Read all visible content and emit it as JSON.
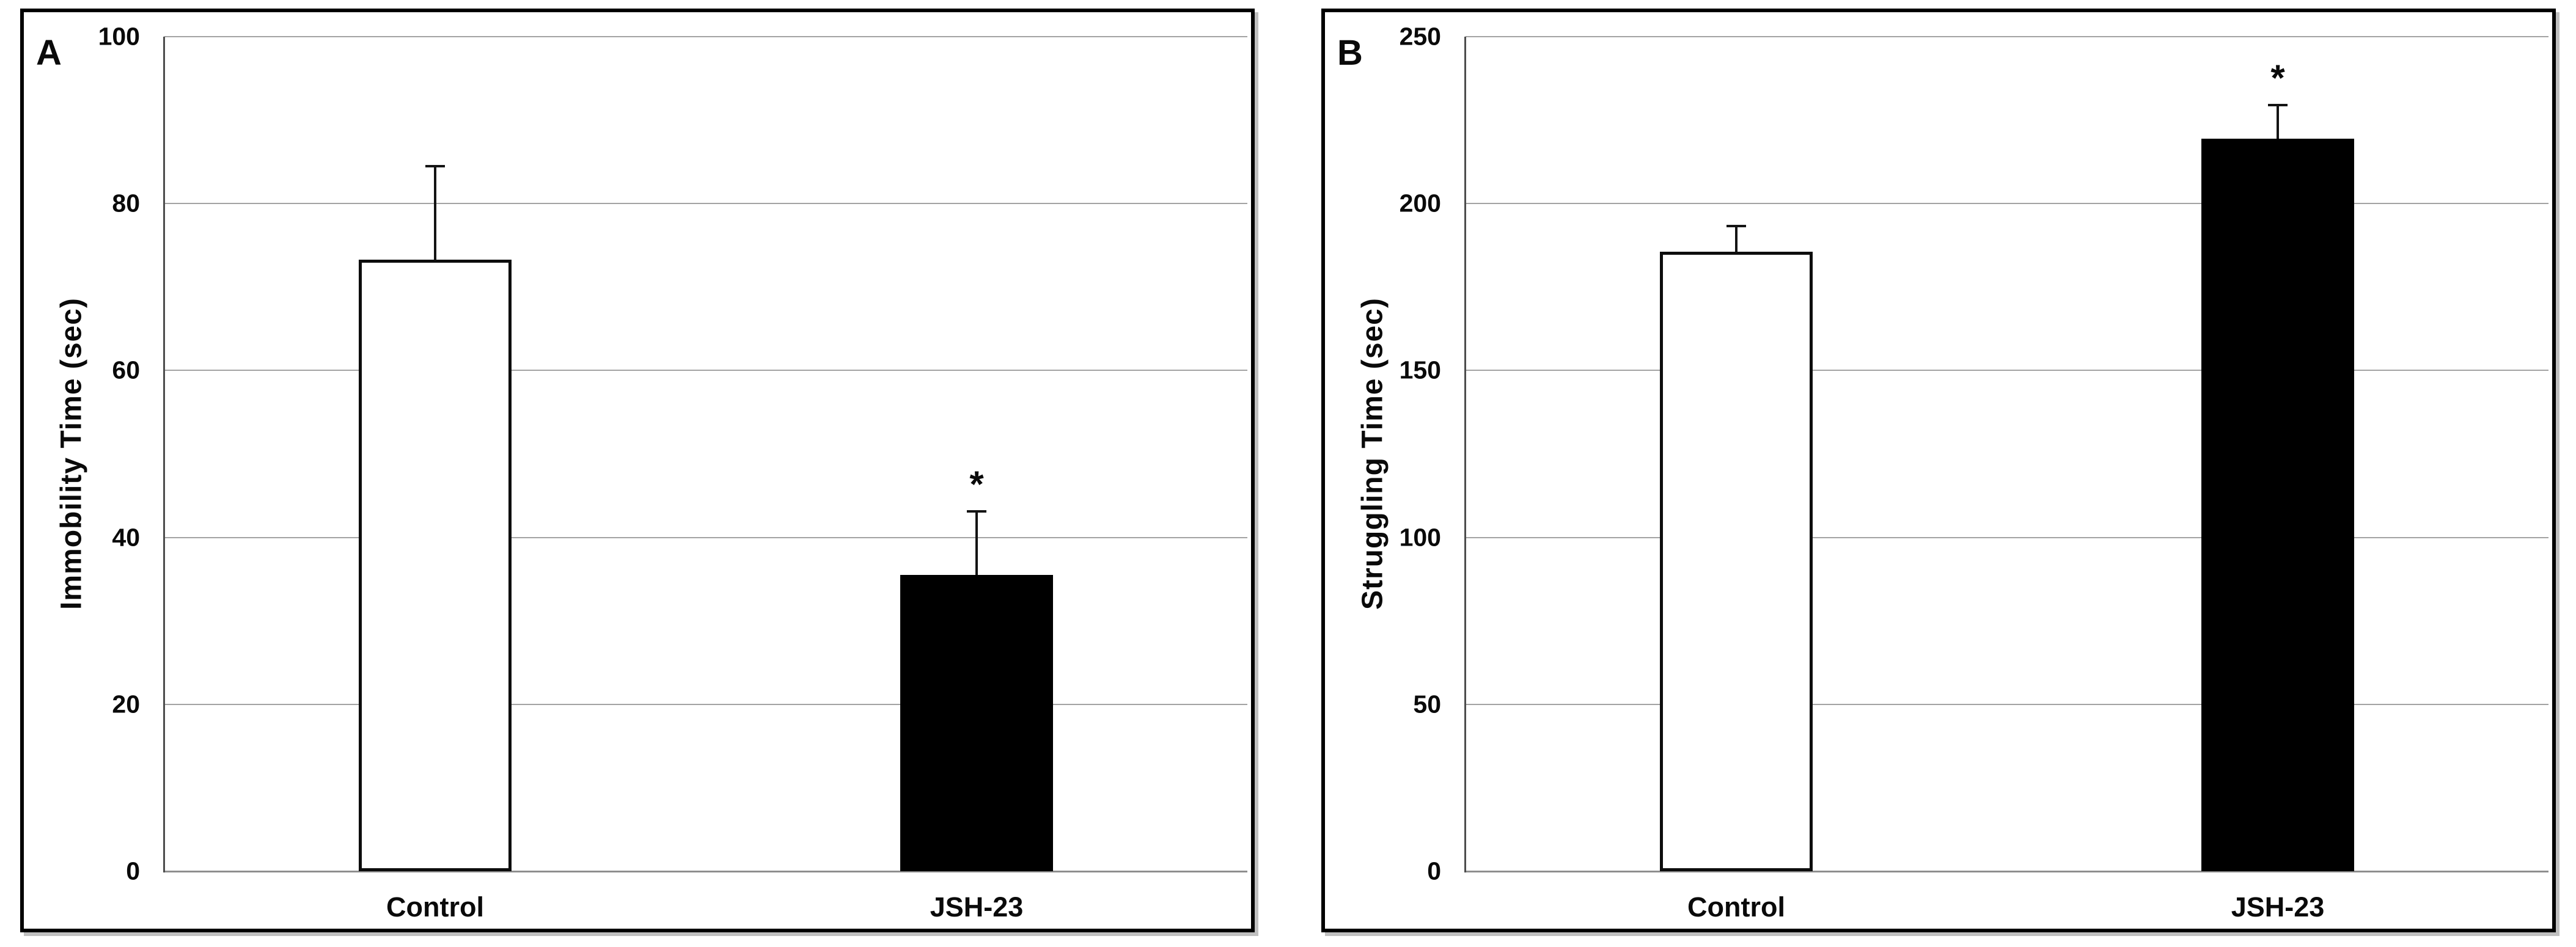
{
  "chart_data": [
    {
      "type": "bar",
      "panel_label": "A",
      "title": "",
      "xlabel": "",
      "ylabel": "Immobility Time (sec)",
      "categories": [
        "Control",
        "JSH-23"
      ],
      "values": [
        73.3,
        35.5
      ],
      "errors_plus": [
        11.2,
        7.6
      ],
      "significance": [
        "",
        "*"
      ],
      "bar_fills": [
        "#ffffff",
        "#000000"
      ],
      "bar_edge_color": "#0d0d0d",
      "ylim": [
        0,
        100
      ],
      "ytick_interval": 20,
      "ytick_labels": [
        "0",
        "20",
        "40",
        "60",
        "80",
        "100"
      ],
      "grid": "horizontal",
      "legend": "none"
    },
    {
      "type": "bar",
      "panel_label": "B",
      "title": "",
      "xlabel": "",
      "ylabel": "Struggling Time (sec)",
      "categories": [
        "Control",
        "JSH-23"
      ],
      "values": [
        185.5,
        219.5
      ],
      "errors_plus": [
        7.7,
        10.0
      ],
      "significance": [
        "",
        "*"
      ],
      "bar_fills": [
        "#ffffff",
        "#000000"
      ],
      "bar_edge_color": "#0d0d0d",
      "ylim": [
        0,
        250
      ],
      "ytick_interval": 50,
      "ytick_labels": [
        "0",
        "50",
        "100",
        "150",
        "200",
        "250"
      ],
      "grid": "horizontal",
      "legend": "none"
    }
  ],
  "styles": {
    "grid_color": "#a3a3a3",
    "baseline_color": "#8f8f8f",
    "y_axis_color": "#4d4d4d",
    "error_bar_color": "#141414",
    "text_color": "#0a0a0a",
    "panel_border_color": "#000000",
    "background_color": "#ffffff"
  }
}
